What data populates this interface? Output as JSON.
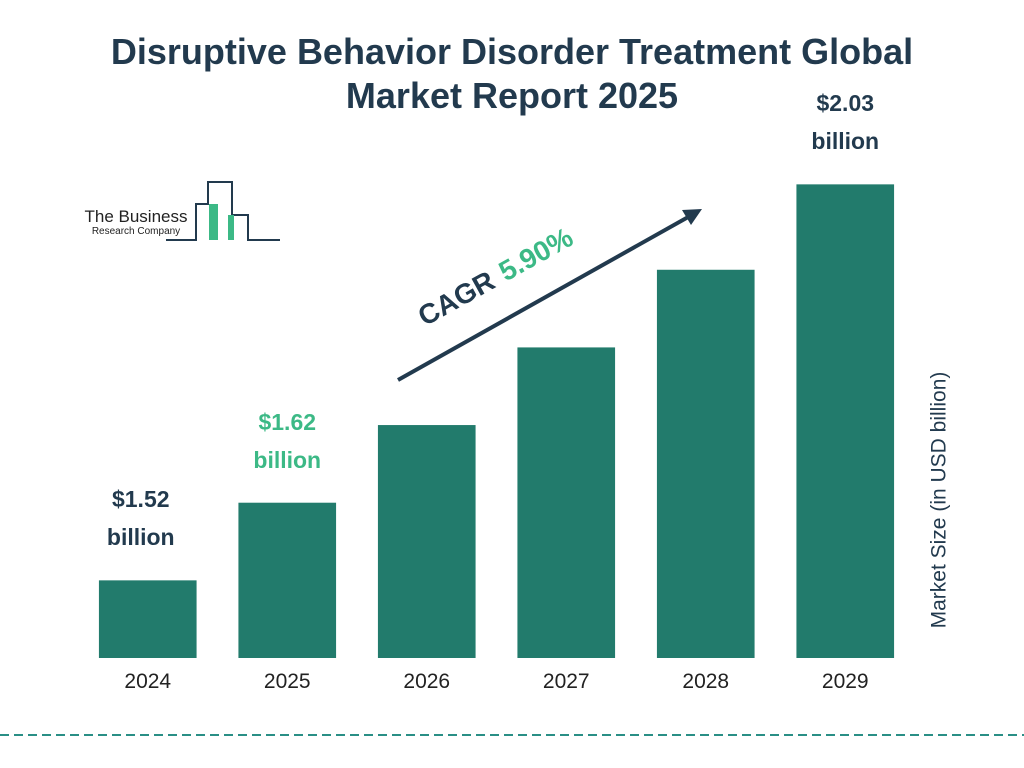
{
  "chart_data": {
    "type": "bar",
    "title": "Disruptive Behavior Disorder Treatment Global Market Report 2025",
    "categories": [
      "2024",
      "2025",
      "2026",
      "2027",
      "2028",
      "2029"
    ],
    "values": [
      1.52,
      1.62,
      1.72,
      1.82,
      1.92,
      2.03
    ],
    "value_labels": [
      "$1.52 billion",
      "$1.62 billion",
      null,
      null,
      null,
      "$2.03 billion"
    ],
    "color": "#227b6c",
    "ylim": [
      1.42,
      2.1
    ],
    "y_axis_label": "Market Size (in USD billion)",
    "cagr_label": "CAGR",
    "cagr_value": "5.90%",
    "logo": {
      "line1": "The Business",
      "line2": "Research Company"
    }
  }
}
